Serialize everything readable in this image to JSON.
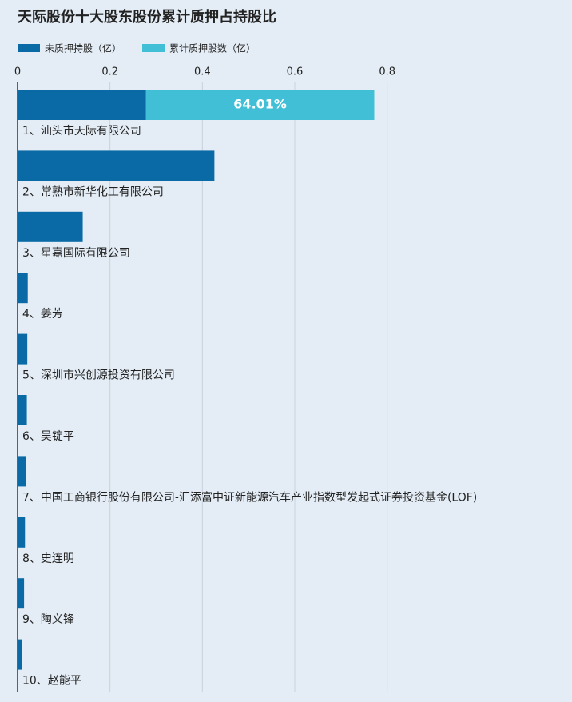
{
  "chart_data": {
    "type": "stacked_barh",
    "title": "天际股份十大股东股份累计质押占持股比",
    "categories": [
      "1、汕头市天际有限公司",
      "2、常熟市新华化工有限公司",
      "3、星嘉国际有限公司",
      "4、姜芳",
      "5、深圳市兴创源投资有限公司",
      "6、吴锭平",
      "7、中国工商银行股份有限公司-汇添富中证新能源汽车产业指数型发起式证券投资基金(LOF)",
      "8、史连明",
      "9、陶义锋",
      "10、赵能平"
    ],
    "series": [
      {
        "name": "未质押持股（亿）",
        "color": "#0a6aa6",
        "values": [
          0.278,
          0.426,
          0.141,
          0.022,
          0.021,
          0.02,
          0.019,
          0.016,
          0.014,
          0.01
        ]
      },
      {
        "name": "累计质押股数（亿）",
        "color": "#40bfd6",
        "values": [
          0.494,
          0,
          0,
          0,
          0,
          0,
          0,
          0,
          0,
          0
        ]
      }
    ],
    "annotation": "64.01%",
    "xlim": [
      0,
      1.2
    ],
    "xticks": [
      0,
      0.2,
      0.4,
      0.6,
      0.8
    ],
    "grid": true
  }
}
